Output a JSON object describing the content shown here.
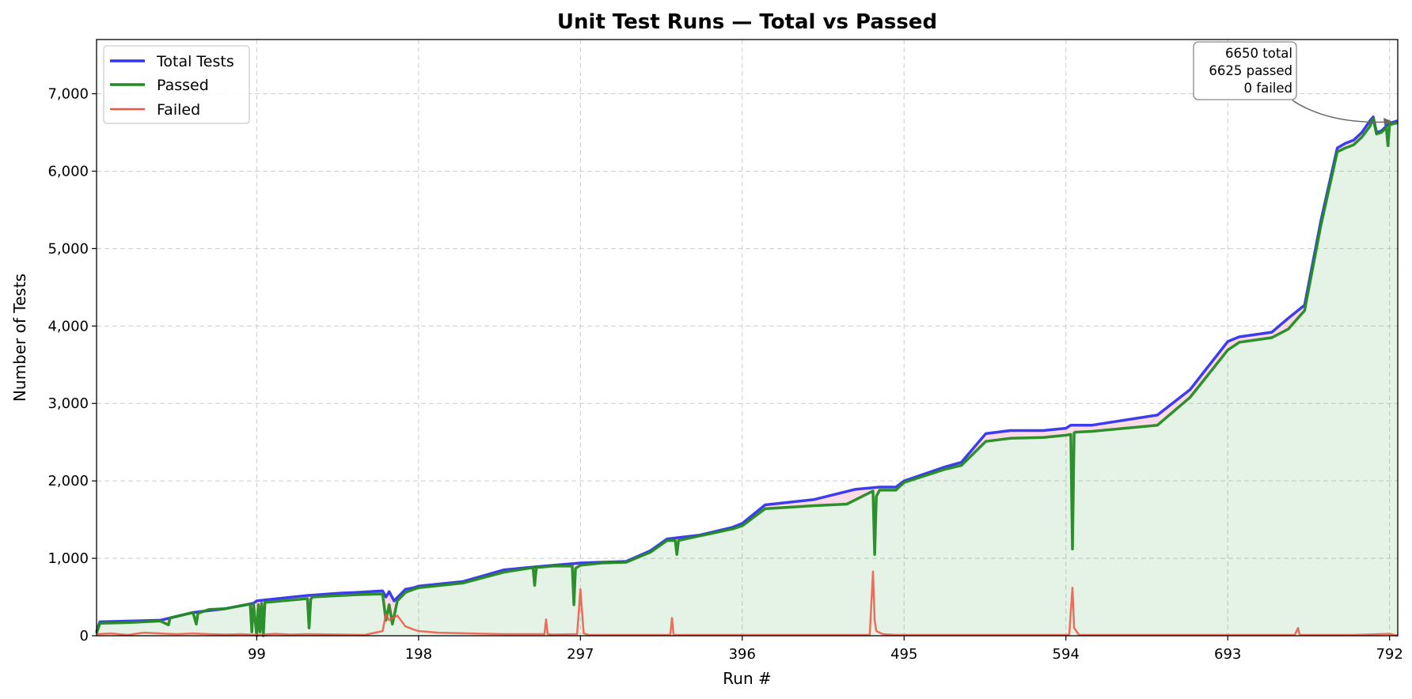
{
  "chart_data": {
    "type": "line",
    "title": "Unit Test Runs — Total vs Passed",
    "xlabel": "Run #",
    "ylabel": "Number of Tests",
    "xlim": [
      1,
      797
    ],
    "ylim": [
      0,
      7700
    ],
    "xticks": [
      99,
      198,
      297,
      396,
      495,
      594,
      693,
      792
    ],
    "xtick_labels": [
      "99",
      "198",
      "297",
      "396",
      "495",
      "594",
      "693",
      "792"
    ],
    "yticks": [
      0,
      1000,
      2000,
      3000,
      4000,
      5000,
      6000,
      7000
    ],
    "ytick_labels": [
      "0",
      "1,000",
      "2,000",
      "3,000",
      "4,000",
      "5,000",
      "6,000",
      "7,000"
    ],
    "grid": true,
    "legend_position": "top-left",
    "series": [
      {
        "name": "Total Tests",
        "color": "#3333ee",
        "x": [
          1,
          3,
          40,
          60,
          80,
          97,
          99,
          130,
          150,
          160,
          176,
          178,
          180,
          183,
          190,
          195,
          198,
          225,
          250,
          270,
          297,
          310,
          325,
          340,
          350,
          370,
          390,
          396,
          410,
          440,
          465,
          480,
          490,
          495,
          520,
          530,
          545,
          560,
          580,
          594,
          597,
          610,
          650,
          670,
          693,
          700,
          720,
          730,
          740,
          750,
          760,
          765,
          770,
          775,
          780,
          782,
          784,
          787,
          792,
          797
        ],
        "y": [
          50,
          180,
          200,
          300,
          350,
          420,
          450,
          520,
          550,
          560,
          580,
          500,
          570,
          450,
          600,
          620,
          640,
          700,
          850,
          890,
          940,
          950,
          960,
          1100,
          1250,
          1300,
          1400,
          1450,
          1690,
          1760,
          1890,
          1920,
          1920,
          2000,
          2180,
          2240,
          2610,
          2650,
          2650,
          2680,
          2720,
          2720,
          2850,
          3180,
          3800,
          3860,
          3920,
          4100,
          4270,
          5360,
          6300,
          6360,
          6400,
          6500,
          6650,
          6700,
          6500,
          6520,
          6620,
          6650
        ]
      },
      {
        "name": "Passed",
        "color": "#228b22",
        "x": [
          1,
          3,
          20,
          40,
          45,
          46,
          60,
          62,
          63,
          70,
          80,
          95,
          96,
          97,
          99,
          100,
          101,
          102,
          103,
          104,
          130,
          131,
          132,
          133,
          150,
          160,
          176,
          178,
          180,
          182,
          185,
          190,
          195,
          198,
          225,
          250,
          268,
          269,
          270,
          280,
          292,
          293,
          294,
          297,
          310,
          325,
          340,
          350,
          355,
          356,
          357,
          370,
          390,
          396,
          410,
          440,
          460,
          476,
          477,
          478,
          480,
          490,
          495,
          520,
          530,
          545,
          560,
          580,
          594,
          597,
          598,
          599,
          600,
          610,
          650,
          670,
          693,
          700,
          720,
          730,
          740,
          750,
          760,
          765,
          770,
          775,
          780,
          782,
          784,
          787,
          790,
          791,
          792,
          797
        ],
        "y": [
          30,
          160,
          170,
          190,
          140,
          230,
          300,
          150,
          290,
          340,
          350,
          410,
          50,
          410,
          0,
          400,
          50,
          420,
          0,
          430,
          480,
          100,
          470,
          500,
          520,
          530,
          540,
          200,
          400,
          150,
          450,
          560,
          600,
          620,
          680,
          820,
          880,
          650,
          880,
          900,
          900,
          400,
          870,
          910,
          940,
          950,
          1080,
          1230,
          1230,
          1050,
          1230,
          1290,
          1380,
          1420,
          1640,
          1680,
          1700,
          1870,
          1050,
          1800,
          1880,
          1880,
          1980,
          2150,
          2200,
          2510,
          2550,
          2560,
          2590,
          2600,
          1120,
          2620,
          2630,
          2640,
          2720,
          3080,
          3690,
          3790,
          3850,
          3960,
          4200,
          5300,
          6250,
          6300,
          6340,
          6440,
          6580,
          6680,
          6480,
          6500,
          6560,
          6330,
          6600,
          6625
        ]
      },
      {
        "name": "Failed",
        "color": "#ee5544",
        "x": [
          1,
          10,
          20,
          30,
          40,
          50,
          60,
          70,
          80,
          90,
          99,
          110,
          120,
          130,
          150,
          165,
          176,
          178,
          180,
          185,
          190,
          195,
          198,
          210,
          230,
          250,
          275,
          276,
          277,
          280,
          295,
          297,
          299,
          302,
          330,
          352,
          353,
          354,
          360,
          400,
          440,
          474,
          476,
          477,
          478,
          482,
          490,
          520,
          550,
          590,
          596,
          598,
          599,
          602,
          610,
          640,
          700,
          720,
          734,
          736,
          737,
          740,
          770,
          792,
          797
        ],
        "y": [
          20,
          30,
          10,
          40,
          30,
          20,
          30,
          20,
          15,
          20,
          10,
          25,
          15,
          20,
          15,
          10,
          60,
          280,
          200,
          260,
          120,
          80,
          60,
          40,
          30,
          20,
          20,
          210,
          20,
          15,
          20,
          600,
          30,
          10,
          10,
          10,
          230,
          10,
          10,
          10,
          10,
          10,
          830,
          200,
          60,
          20,
          10,
          10,
          10,
          10,
          10,
          620,
          100,
          10,
          10,
          10,
          10,
          10,
          10,
          100,
          10,
          10,
          10,
          25,
          0
        ]
      }
    ],
    "annotation": {
      "lines": [
        "6650 total",
        "6625 passed",
        "0 failed"
      ],
      "x": 792,
      "y": 6650
    }
  }
}
